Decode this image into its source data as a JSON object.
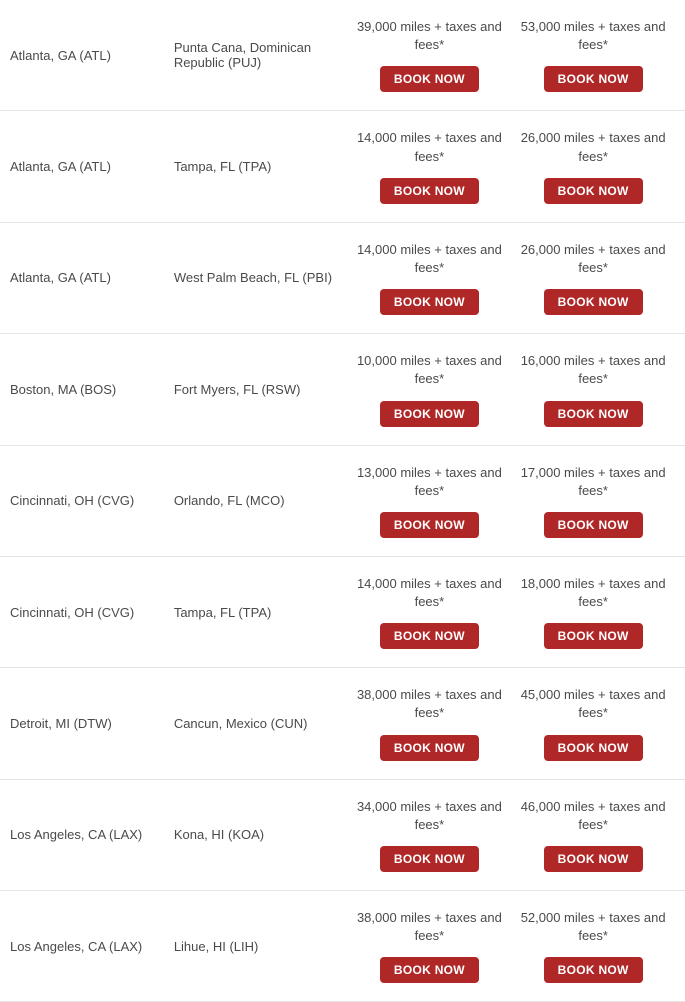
{
  "button_label": "BOOK NOW",
  "button_bg_color": "#b02727",
  "button_text_color": "#ffffff",
  "border_color": "#e5e5e5",
  "text_color": "#4a4a4a",
  "font_size": 13,
  "flights": [
    {
      "origin": "Atlanta, GA (ATL)",
      "destination": "Punta Cana, Dominican Republic (PUJ)",
      "price1": "39,000 miles + taxes and fees*",
      "price2": "53,000 miles + taxes and fees*"
    },
    {
      "origin": "Atlanta, GA (ATL)",
      "destination": "Tampa, FL (TPA)",
      "price1": "14,000 miles + taxes and fees*",
      "price2": "26,000 miles + taxes and fees*"
    },
    {
      "origin": "Atlanta, GA (ATL)",
      "destination": "West Palm Beach, FL (PBI)",
      "price1": "14,000 miles + taxes and fees*",
      "price2": "26,000 miles + taxes and fees*"
    },
    {
      "origin": "Boston, MA (BOS)",
      "destination": "Fort Myers, FL (RSW)",
      "price1": "10,000 miles + taxes and fees*",
      "price2": "16,000 miles + taxes and fees*"
    },
    {
      "origin": "Cincinnati, OH (CVG)",
      "destination": "Orlando, FL (MCO)",
      "price1": "13,000 miles + taxes and fees*",
      "price2": "17,000 miles + taxes and fees*"
    },
    {
      "origin": "Cincinnati, OH (CVG)",
      "destination": "Tampa, FL (TPA)",
      "price1": "14,000 miles + taxes and fees*",
      "price2": "18,000 miles + taxes and fees*"
    },
    {
      "origin": "Detroit, MI (DTW)",
      "destination": "Cancun, Mexico (CUN)",
      "price1": "38,000 miles + taxes and fees*",
      "price2": "45,000 miles + taxes and fees*"
    },
    {
      "origin": "Los Angeles, CA (LAX)",
      "destination": "Kona, HI (KOA)",
      "price1": "34,000 miles + taxes and fees*",
      "price2": "46,000 miles + taxes and fees*"
    },
    {
      "origin": "Los Angeles, CA (LAX)",
      "destination": "Lihue, HI (LIH)",
      "price1": "38,000 miles + taxes and fees*",
      "price2": "52,000 miles + taxes and fees*"
    }
  ]
}
